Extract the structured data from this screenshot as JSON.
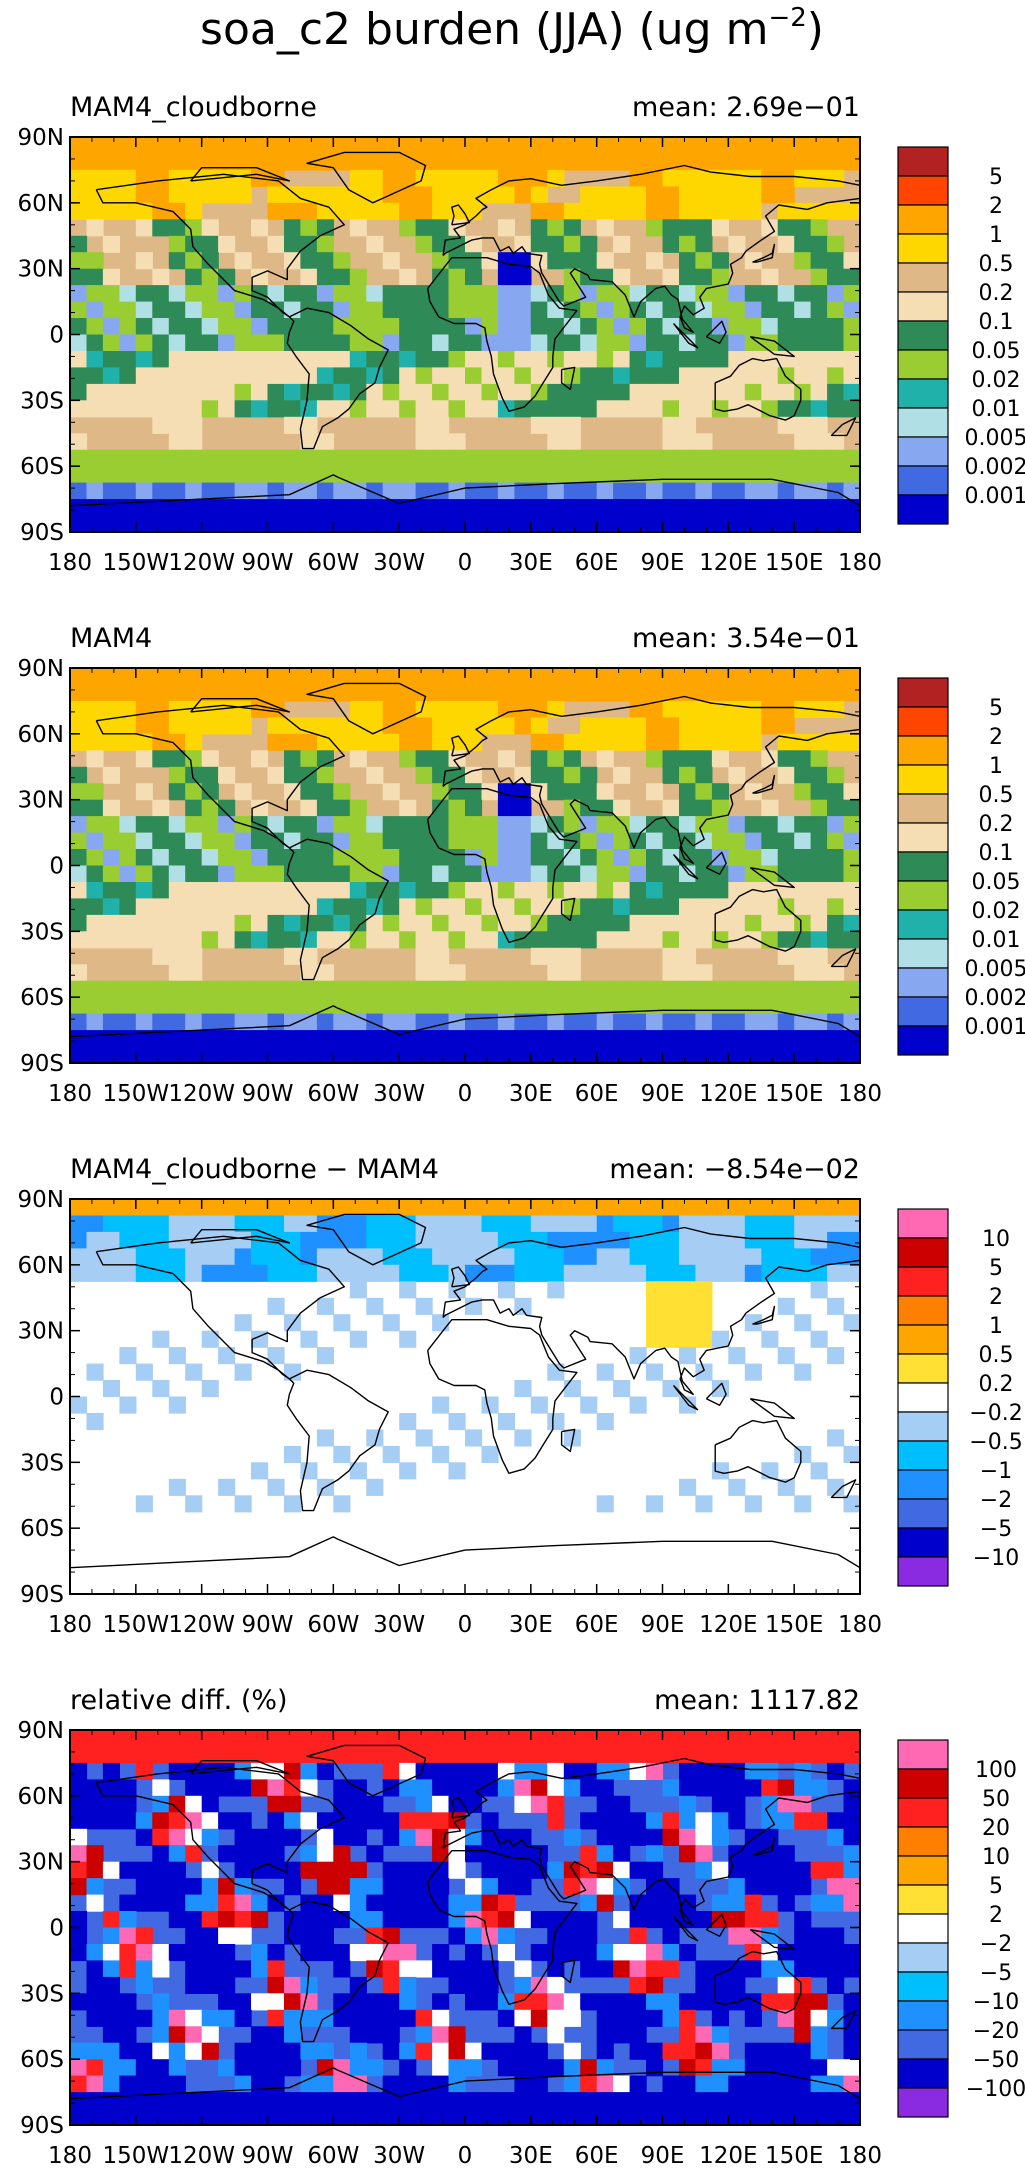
{
  "figure": {
    "title": "soa_c2 burden (JJA) (ug m",
    "title_sup": "−2",
    "title_close": ")"
  },
  "x_ticks": [
    "180",
    "150W",
    "120W",
    "90W",
    "60W",
    "30W",
    "0",
    "30E",
    "60E",
    "90E",
    "120E",
    "150E",
    "180"
  ],
  "y_ticks": [
    "90N",
    "60N",
    "30N",
    "0",
    "30S",
    "60S",
    "90S"
  ],
  "panels": [
    {
      "id": "cloudborne",
      "label": "MAM4_cloudborne",
      "mean_text": "mean: 2.69e−01",
      "levels": [
        "5",
        "2",
        "1",
        "0.5",
        "0.2",
        "0.1",
        "0.05",
        "0.02",
        "0.01",
        "0.005",
        "0.002",
        "0.001"
      ],
      "colors": [
        "#B22222",
        "#FF4500",
        "#FFA500",
        "#FFD700",
        "#DEB887",
        "#F5DEB3",
        "#2E8B57",
        "#9ACD32",
        "#20B2AA",
        "#B0E0E6",
        "#87A8F0",
        "#4169E1",
        "#0000CD"
      ],
      "scheme": "abs",
      "mean": 0.269
    },
    {
      "id": "mam4",
      "label": "MAM4",
      "mean_text": "mean: 3.54e−01",
      "levels": [
        "5",
        "2",
        "1",
        "0.5",
        "0.2",
        "0.1",
        "0.05",
        "0.02",
        "0.01",
        "0.005",
        "0.002",
        "0.001"
      ],
      "colors": [
        "#B22222",
        "#FF4500",
        "#FFA500",
        "#FFD700",
        "#DEB887",
        "#F5DEB3",
        "#2E8B57",
        "#9ACD32",
        "#20B2AA",
        "#B0E0E6",
        "#87A8F0",
        "#4169E1",
        "#0000CD"
      ],
      "scheme": "abs",
      "mean": 0.354
    },
    {
      "id": "diff",
      "label": "MAM4_cloudborne − MAM4",
      "mean_text": "mean: −8.54e−02",
      "levels": [
        "10",
        "5",
        "2",
        "1",
        "0.5",
        "0.2",
        "−0.2",
        "−0.5",
        "−1",
        "−2",
        "−5",
        "−10"
      ],
      "colors": [
        "#FF69B4",
        "#CC0000",
        "#FF2020",
        "#FF7F00",
        "#FFA500",
        "#FFE033",
        "#FFFFFF",
        "#A6CEF5",
        "#00BFFF",
        "#1E90FF",
        "#4169E1",
        "#0000CD",
        "#8A2BE2"
      ],
      "scheme": "diff",
      "mean": -0.0854
    },
    {
      "id": "reldiff",
      "label": "relative diff. (%)",
      "mean_text": "mean: 1117.82",
      "levels": [
        "100",
        "50",
        "20",
        "10",
        "5",
        "2",
        "−2",
        "−5",
        "−10",
        "−20",
        "−50",
        "−100"
      ],
      "colors": [
        "#FF69B4",
        "#CC0000",
        "#FF2020",
        "#FF7F00",
        "#FFA500",
        "#FFE033",
        "#FFFFFF",
        "#A6CEF5",
        "#00BFFF",
        "#1E90FF",
        "#4169E1",
        "#0000CD",
        "#8A2BE2"
      ],
      "scheme": "rel",
      "mean": 1117.82
    }
  ]
}
